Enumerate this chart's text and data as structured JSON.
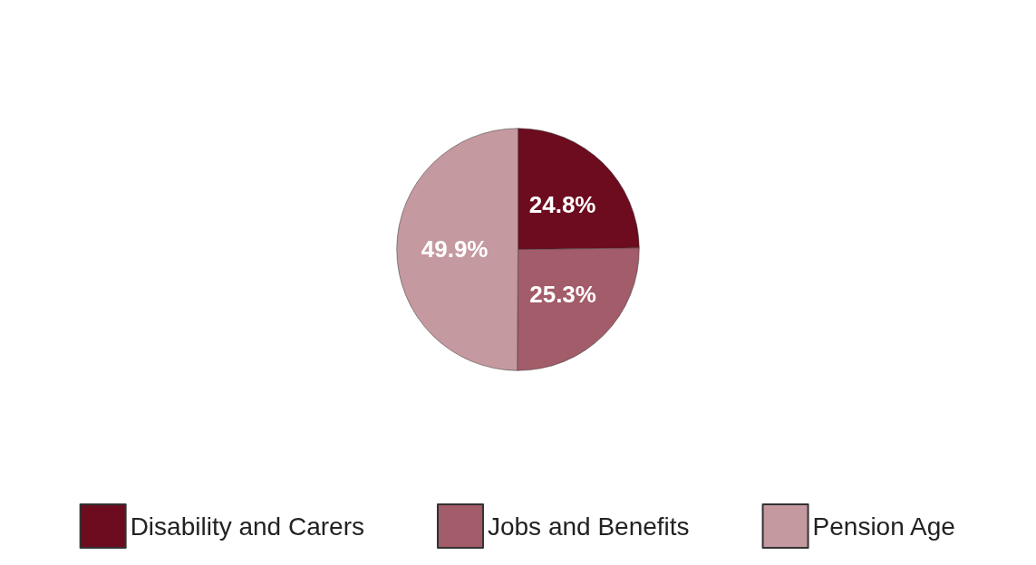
{
  "chart_data": {
    "type": "pie",
    "categories": [
      "Disability and Carers",
      "Jobs and Benefits",
      "Pension Age"
    ],
    "values": [
      24.8,
      25.3,
      49.9
    ],
    "colors": [
      "#6d0b1f",
      "#a35c69",
      "#c4999f"
    ],
    "value_labels": [
      "24.8%",
      "25.3%",
      "49.9%"
    ],
    "legend": "bottom"
  }
}
